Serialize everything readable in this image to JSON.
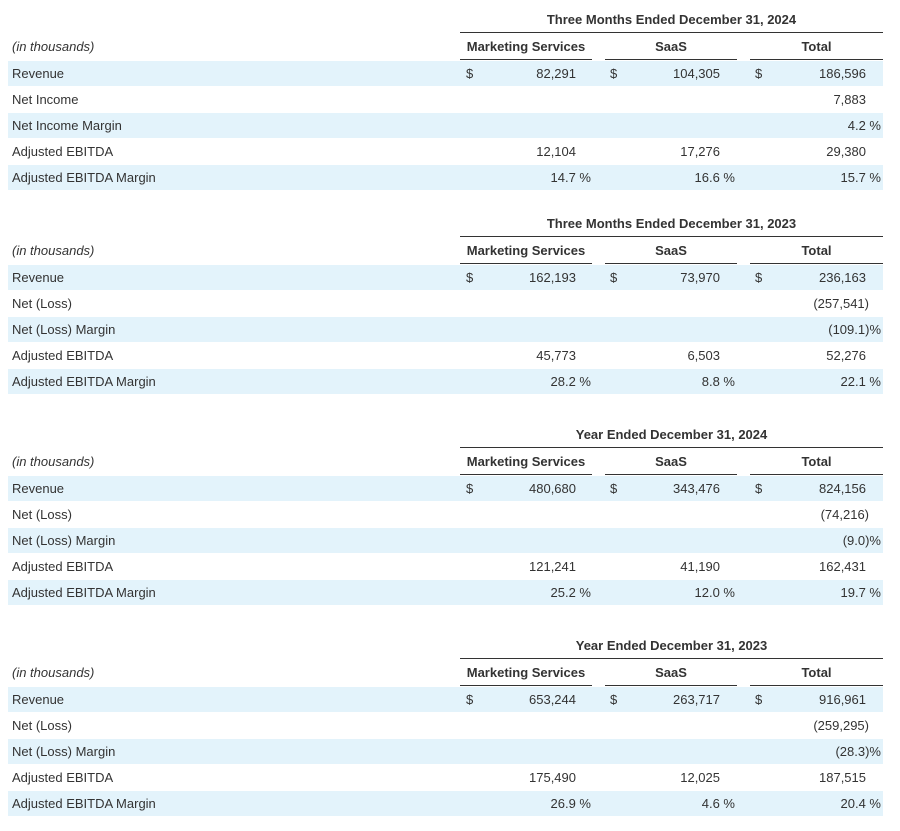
{
  "tables": [
    {
      "period": "Three Months Ended December 31, 2024",
      "unit": "(in thousands)",
      "columns": [
        "Marketing Services",
        "SaaS",
        "Total"
      ],
      "rows": [
        {
          "label": "Revenue",
          "cells": [
            {
              "currency": "$",
              "value": "82,291"
            },
            {
              "currency": "$",
              "value": "104,305"
            },
            {
              "currency": "$",
              "value": "186,596"
            }
          ]
        },
        {
          "label": "Net Income",
          "total": "7,883"
        },
        {
          "label": "Net Income Margin",
          "total": "4.2 %"
        },
        {
          "label": "Adjusted EBITDA",
          "cells": [
            {
              "value": "12,104"
            },
            {
              "value": "17,276"
            },
            {
              "value": "29,380"
            }
          ]
        },
        {
          "label": "Adjusted EBITDA Margin",
          "cells": [
            {
              "value": "14.7 %"
            },
            {
              "value": "16.6 %"
            },
            {
              "value": "15.7 %"
            }
          ]
        }
      ]
    },
    {
      "period": "Three Months Ended December 31, 2023",
      "unit": "(in thousands)",
      "columns": [
        "Marketing Services",
        "SaaS",
        "Total"
      ],
      "rows": [
        {
          "label": "Revenue",
          "cells": [
            {
              "currency": "$",
              "value": "162,193"
            },
            {
              "currency": "$",
              "value": "73,970"
            },
            {
              "currency": "$",
              "value": "236,163"
            }
          ]
        },
        {
          "label": "Net (Loss)",
          "total": "(257,541)"
        },
        {
          "label": "Net (Loss) Margin",
          "total": "(109.1)%"
        },
        {
          "label": "Adjusted EBITDA",
          "cells": [
            {
              "value": "45,773"
            },
            {
              "value": "6,503"
            },
            {
              "value": "52,276"
            }
          ]
        },
        {
          "label": "Adjusted EBITDA Margin",
          "cells": [
            {
              "value": "28.2 %"
            },
            {
              "value": "8.8 %"
            },
            {
              "value": "22.1 %"
            }
          ]
        }
      ]
    },
    {
      "period": "Year Ended December 31, 2024",
      "unit": "(in thousands)",
      "columns": [
        "Marketing Services",
        "SaaS",
        "Total"
      ],
      "rows": [
        {
          "label": "Revenue",
          "cells": [
            {
              "currency": "$",
              "value": "480,680"
            },
            {
              "currency": "$",
              "value": "343,476"
            },
            {
              "currency": "$",
              "value": "824,156"
            }
          ]
        },
        {
          "label": "Net (Loss)",
          "total": "(74,216)"
        },
        {
          "label": "Net (Loss) Margin",
          "total": "(9.0)%"
        },
        {
          "label": "Adjusted EBITDA",
          "cells": [
            {
              "value": "121,241"
            },
            {
              "value": "41,190"
            },
            {
              "value": "162,431"
            }
          ]
        },
        {
          "label": "Adjusted EBITDA Margin",
          "cells": [
            {
              "value": "25.2 %"
            },
            {
              "value": "12.0 %"
            },
            {
              "value": "19.7 %"
            }
          ]
        }
      ]
    },
    {
      "period": "Year Ended December 31, 2023",
      "unit": "(in thousands)",
      "columns": [
        "Marketing Services",
        "SaaS",
        "Total"
      ],
      "rows": [
        {
          "label": "Revenue",
          "cells": [
            {
              "currency": "$",
              "value": "653,244"
            },
            {
              "currency": "$",
              "value": "263,717"
            },
            {
              "currency": "$",
              "value": "916,961"
            }
          ]
        },
        {
          "label": "Net (Loss)",
          "total": "(259,295)"
        },
        {
          "label": "Net (Loss) Margin",
          "total": "(28.3)%"
        },
        {
          "label": "Adjusted EBITDA",
          "cells": [
            {
              "value": "175,490"
            },
            {
              "value": "12,025"
            },
            {
              "value": "187,515"
            }
          ]
        },
        {
          "label": "Adjusted EBITDA Margin",
          "cells": [
            {
              "value": "26.9 %"
            },
            {
              "value": "4.6 %"
            },
            {
              "value": "20.4 %"
            }
          ]
        }
      ]
    }
  ]
}
